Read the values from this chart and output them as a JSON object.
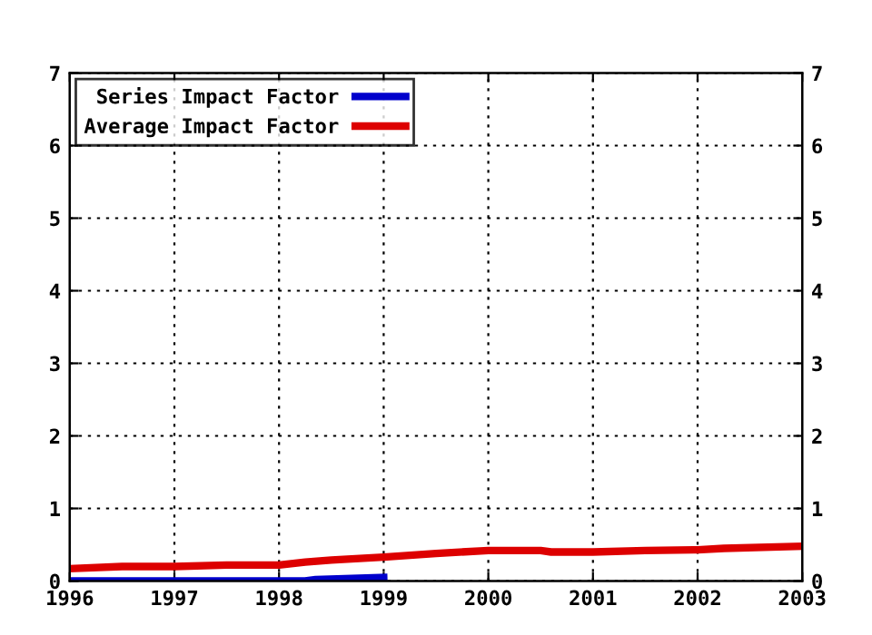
{
  "chart_data": {
    "type": "line",
    "x": [
      1996,
      1996.5,
      1997,
      1997.5,
      1998,
      1998.25,
      1998.5,
      1999,
      1999.5,
      2000,
      2000.5,
      2000.6,
      2001,
      2001.5,
      2002,
      2002.25,
      2003
    ],
    "series": [
      {
        "name": "Series Impact Factor",
        "color": "#0000cc",
        "x": [
          1996,
          1998.25,
          1998.35,
          1999
        ],
        "values": [
          0,
          0,
          0.02,
          0.05
        ]
      },
      {
        "name": "Average Impact Factor",
        "color": "#dd0000",
        "values": [
          0.17,
          0.2,
          0.2,
          0.22,
          0.22,
          0.26,
          0.29,
          0.33,
          0.38,
          0.42,
          0.42,
          0.4,
          0.4,
          0.42,
          0.43,
          0.45,
          0.48
        ]
      }
    ],
    "xlim": [
      1996,
      2003
    ],
    "xticks": [
      1996,
      1997,
      1998,
      1999,
      2000,
      2001,
      2002,
      2003
    ],
    "ylim": [
      0,
      7
    ],
    "yticks": [
      0,
      1,
      2,
      3,
      4,
      5,
      6,
      7
    ],
    "y2lim": [
      0,
      7
    ],
    "y2ticks": [
      0,
      1,
      2,
      3,
      4,
      5,
      6,
      7
    ],
    "grid": true,
    "legend": "top left",
    "marker": "none",
    "line_style": "solid"
  }
}
